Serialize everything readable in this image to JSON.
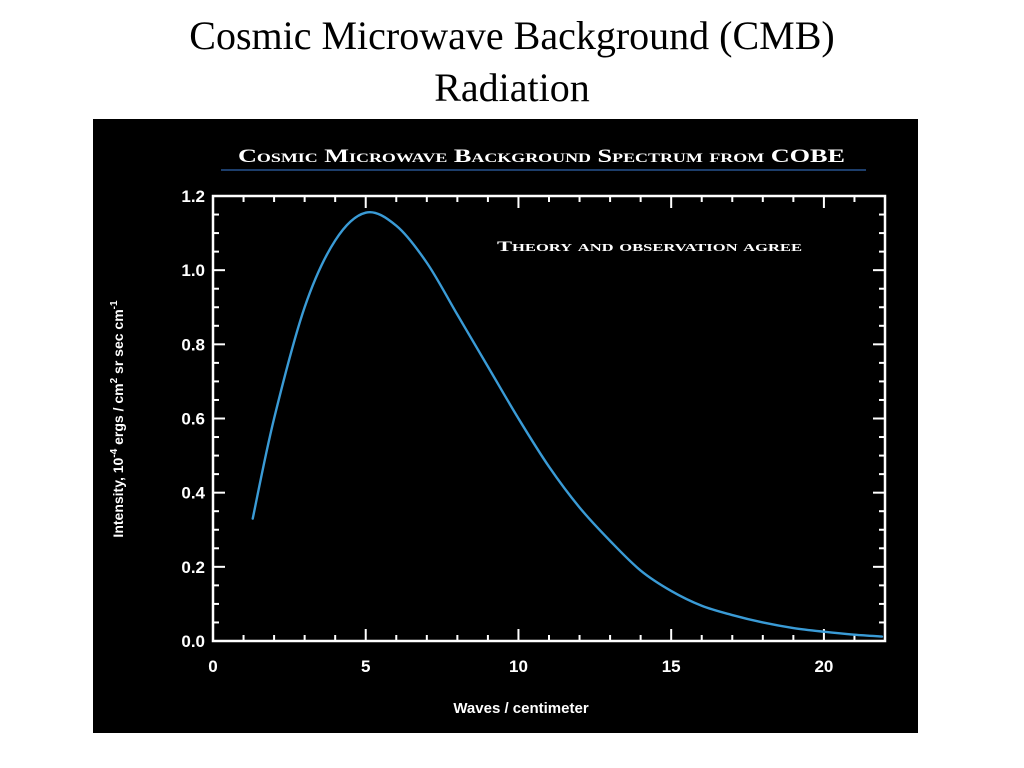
{
  "slide": {
    "title_line1": "Cosmic Microwave Background (CMB)",
    "title_line2": "Radiation"
  },
  "colors": {
    "page_background": "#ffffff",
    "figure_background": "#000000",
    "axes": "#ffffff",
    "curve": "#3a9bd6",
    "title_rule": "#3a7bd6"
  },
  "chart_data": {
    "type": "line",
    "title": "Cosmic Microwave Background Spectrum from COBE",
    "annotation": "Theory and observation agree",
    "xlabel": "Waves / centimeter",
    "ylabel_parts": {
      "prefix": "Intensity, 10",
      "exp1": "-4",
      "middle": " ergs / cm",
      "exp2": "2",
      "suffix": " sr sec cm",
      "exp3": "-1"
    },
    "xlim": [
      0,
      22
    ],
    "ylim": [
      0,
      1.2
    ],
    "x_ticks": [
      {
        "value": 0,
        "label": "0"
      },
      {
        "value": 5,
        "label": "5"
      },
      {
        "value": 10,
        "label": "10"
      },
      {
        "value": 15,
        "label": "15"
      },
      {
        "value": 20,
        "label": "20"
      }
    ],
    "y_ticks": [
      {
        "value": 0.0,
        "label": "0.0"
      },
      {
        "value": 0.2,
        "label": "0.2"
      },
      {
        "value": 0.4,
        "label": "0.4"
      },
      {
        "value": 0.6,
        "label": "0.6"
      },
      {
        "value": 0.8,
        "label": "0.8"
      },
      {
        "value": 1.0,
        "label": "1.0"
      },
      {
        "value": 1.2,
        "label": "1.2"
      }
    ],
    "grid": false,
    "series": [
      {
        "x": [
          1.3,
          2.0,
          3.0,
          4.0,
          5.0,
          6.0,
          7.0,
          8.0,
          9.0,
          10.0,
          11.0,
          12.0,
          13.0,
          14.0,
          15.0,
          16.0,
          17.0,
          18.0,
          19.0,
          20.0,
          21.0,
          21.9
        ],
        "y": [
          0.33,
          0.6,
          0.9,
          1.08,
          1.155,
          1.12,
          1.02,
          0.88,
          0.74,
          0.6,
          0.47,
          0.36,
          0.27,
          0.19,
          0.135,
          0.095,
          0.07,
          0.05,
          0.035,
          0.025,
          0.017,
          0.012
        ]
      }
    ]
  }
}
